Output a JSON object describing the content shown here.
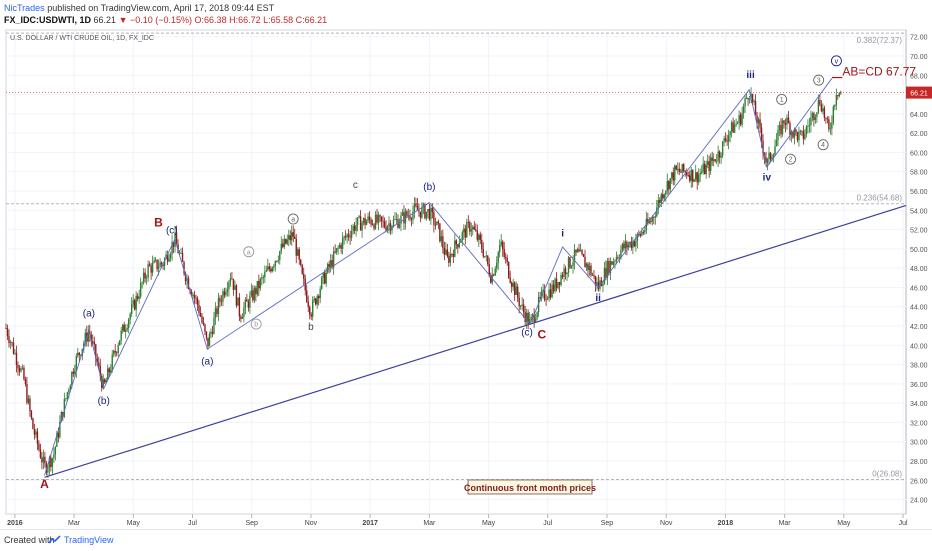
{
  "header": {
    "author": "NicTrades",
    "published": " published on TradingView.com, April 17, 2018 09:44 EST",
    "symbol": "FX_IDC:USDWTI, 1D",
    "last": "66.21",
    "change": "▼ −0.10 (−0.15%)",
    "ohlc": "O:66.38 H:66.72 L:65.58 C:66.21"
  },
  "footer": {
    "created": "Created with",
    "brand": "TradingView"
  },
  "chart_data": {
    "type": "candlestick",
    "title": "U.S. DOLLAR / WTI CRUDE OIL, 1D, FX_IDC",
    "ylim": [
      22.5,
      72.7
    ],
    "y_ticks": [
      24,
      26,
      28,
      30,
      32,
      34,
      36,
      38,
      40,
      42,
      44,
      46,
      48,
      50,
      52,
      54,
      56,
      58,
      60,
      62,
      64,
      66,
      68,
      70,
      72
    ],
    "x_ticks": [
      {
        "label": "2016",
        "x": 0
      },
      {
        "label": "Mar",
        "x": 2
      },
      {
        "label": "May",
        "x": 4
      },
      {
        "label": "Jul",
        "x": 6
      },
      {
        "label": "Sep",
        "x": 8
      },
      {
        "label": "Nov",
        "x": 10
      },
      {
        "label": "2017",
        "x": 12
      },
      {
        "label": "Mar",
        "x": 14
      },
      {
        "label": "May",
        "x": 16
      },
      {
        "label": "Jul",
        "x": 18
      },
      {
        "label": "Sep",
        "x": 20
      },
      {
        "label": "Nov",
        "x": 22
      },
      {
        "label": "2018",
        "x": 24
      },
      {
        "label": "Mar",
        "x": 26
      },
      {
        "label": "May",
        "x": 28
      },
      {
        "label": "Jul",
        "x": 30
      }
    ],
    "price_path": [
      [
        -0.3,
        41.8
      ],
      [
        0.3,
        36.5
      ],
      [
        0.6,
        31.5
      ],
      [
        1.0,
        27.3
      ],
      [
        1.3,
        28.5
      ],
      [
        1.6,
        33
      ],
      [
        2.0,
        38
      ],
      [
        2.5,
        41.5
      ],
      [
        3.0,
        35.5
      ],
      [
        3.5,
        40.5
      ],
      [
        4.0,
        44
      ],
      [
        4.5,
        48
      ],
      [
        5.0,
        48.5
      ],
      [
        5.4,
        51
      ],
      [
        5.8,
        47
      ],
      [
        6.2,
        44
      ],
      [
        6.5,
        40
      ],
      [
        6.9,
        44.5
      ],
      [
        7.3,
        47.5
      ],
      [
        7.6,
        43.2
      ],
      [
        8.0,
        45
      ],
      [
        8.5,
        47.5
      ],
      [
        9.0,
        50
      ],
      [
        9.4,
        51.5
      ],
      [
        9.7,
        47
      ],
      [
        10.0,
        43.5
      ],
      [
        10.3,
        46
      ],
      [
        10.6,
        48
      ],
      [
        11.0,
        50.5
      ],
      [
        11.5,
        52.5
      ],
      [
        12.0,
        53
      ],
      [
        12.5,
        52.5
      ],
      [
        13.0,
        53
      ],
      [
        13.5,
        54
      ],
      [
        14.0,
        53.8
      ],
      [
        14.3,
        52
      ],
      [
        14.6,
        48.8
      ],
      [
        15.0,
        51
      ],
      [
        15.4,
        52.5
      ],
      [
        15.8,
        50
      ],
      [
        16.1,
        47
      ],
      [
        16.4,
        50.5
      ],
      [
        16.8,
        46.5
      ],
      [
        17.1,
        44
      ],
      [
        17.4,
        42.2
      ],
      [
        17.8,
        45
      ],
      [
        18.2,
        46
      ],
      [
        18.6,
        48
      ],
      [
        19.0,
        49.5
      ],
      [
        19.4,
        48
      ],
      [
        19.7,
        46
      ],
      [
        20.0,
        48
      ],
      [
        20.5,
        50
      ],
      [
        21.0,
        51
      ],
      [
        21.5,
        53
      ],
      [
        21.9,
        56
      ],
      [
        22.3,
        58
      ],
      [
        22.7,
        58
      ],
      [
        23.0,
        57.5
      ],
      [
        23.4,
        58.5
      ],
      [
        23.8,
        60
      ],
      [
        24.1,
        62
      ],
      [
        24.5,
        63.5
      ],
      [
        24.8,
        66.5
      ],
      [
        25.1,
        63
      ],
      [
        25.4,
        58.7
      ],
      [
        25.7,
        61
      ],
      [
        26.0,
        63.5
      ],
      [
        26.3,
        62
      ],
      [
        26.6,
        61.5
      ],
      [
        26.9,
        63.5
      ],
      [
        27.2,
        65.5
      ],
      [
        27.5,
        62
      ],
      [
        27.75,
        66.5
      ],
      [
        27.9,
        66.2
      ]
    ],
    "fib_levels": [
      {
        "label": "0.382(72.37)",
        "value": 72.37
      },
      {
        "label": "0.236(54.68)",
        "value": 54.68
      },
      {
        "label": "0(26.08)",
        "value": 26.08
      }
    ],
    "trendline": {
      "from": {
        "x": 1.0,
        "y": 26.3
      },
      "to": {
        "x": 30.1,
        "y": 54.5
      }
    },
    "zigzag": [
      {
        "x": 1.0,
        "y": 26.5
      },
      {
        "x": 2.5,
        "y": 41.5
      },
      {
        "x": 3.0,
        "y": 35.5
      },
      {
        "x": 5.4,
        "y": 51.0
      },
      {
        "x": 6.5,
        "y": 39.6
      },
      {
        "x": 14.0,
        "y": 54.8
      },
      {
        "x": 17.4,
        "y": 42.2
      },
      {
        "x": 18.5,
        "y": 50.2
      },
      {
        "x": 19.7,
        "y": 46.0
      },
      {
        "x": 24.8,
        "y": 66.5
      },
      {
        "x": 25.4,
        "y": 58.5
      },
      {
        "x": 27.6,
        "y": 67.7
      }
    ],
    "labels": [
      {
        "text": "A",
        "x": 1.0,
        "y": 25.2,
        "color": "#a31515",
        "size": 12,
        "bold": true
      },
      {
        "text": "(a)",
        "x": 2.5,
        "y": 43.0,
        "color": "#1a237e",
        "size": 10
      },
      {
        "text": "(b)",
        "x": 3.0,
        "y": 33.9,
        "color": "#1a237e",
        "size": 10
      },
      {
        "text": "B",
        "x": 4.85,
        "y": 52.3,
        "color": "#a31515",
        "size": 12,
        "bold": true
      },
      {
        "text": "(c)",
        "x": 5.3,
        "y": 51.6,
        "color": "#1a237e",
        "size": 10
      },
      {
        "text": "(a)",
        "x": 6.5,
        "y": 38.0,
        "color": "#1a237e",
        "size": 10
      },
      {
        "text": "b",
        "x": 10.0,
        "y": 41.6,
        "color": "#444444",
        "size": 10
      },
      {
        "text": "c",
        "x": 11.5,
        "y": 56.3,
        "color": "#444444",
        "size": 10
      },
      {
        "text": "(b)",
        "x": 14.0,
        "y": 56.1,
        "color": "#1a237e",
        "size": 10
      },
      {
        "text": "(c)",
        "x": 17.3,
        "y": 41.0,
        "color": "#1a237e",
        "size": 10
      },
      {
        "text": "C",
        "x": 17.8,
        "y": 40.7,
        "color": "#a31515",
        "size": 12,
        "bold": true
      },
      {
        "text": "i",
        "x": 18.5,
        "y": 51.3,
        "color": "#1a237e",
        "size": 10,
        "bold": true
      },
      {
        "text": "ii",
        "x": 19.7,
        "y": 44.6,
        "color": "#1a237e",
        "size": 10,
        "bold": true
      },
      {
        "text": "iii",
        "x": 24.85,
        "y": 67.7,
        "color": "#1a237e",
        "size": 10,
        "bold": true
      },
      {
        "text": "iv",
        "x": 25.4,
        "y": 57.1,
        "color": "#1a237e",
        "size": 10,
        "bold": true
      },
      {
        "text": "AB=CD 67.77",
        "x": 27.95,
        "y": 68.0,
        "color": "#a31515",
        "size": 12,
        "anchor": "start"
      }
    ],
    "circled_labels": [
      {
        "text": "a",
        "x": 9.4,
        "y": 53.1,
        "color": "#666666"
      },
      {
        "text": "b",
        "x": 8.15,
        "y": 42.2,
        "color": "#999999"
      },
      {
        "text": "a",
        "x": 7.9,
        "y": 49.7,
        "color": "#999999"
      },
      {
        "text": "1",
        "x": 25.9,
        "y": 65.5,
        "color": "#666666"
      },
      {
        "text": "2",
        "x": 26.2,
        "y": 59.3,
        "color": "#666666"
      },
      {
        "text": "3",
        "x": 27.15,
        "y": 67.5,
        "color": "#666666"
      },
      {
        "text": "4",
        "x": 27.3,
        "y": 60.8,
        "color": "#666666"
      },
      {
        "text": "v",
        "x": 27.75,
        "y": 69.5,
        "color": "#1a237e"
      }
    ],
    "annotation_box": {
      "text": "Continuous front month prices",
      "x": 17.4,
      "y": 25.2
    },
    "last_price": {
      "label": "66.21",
      "value": 66.21,
      "color": "#c62828"
    }
  }
}
